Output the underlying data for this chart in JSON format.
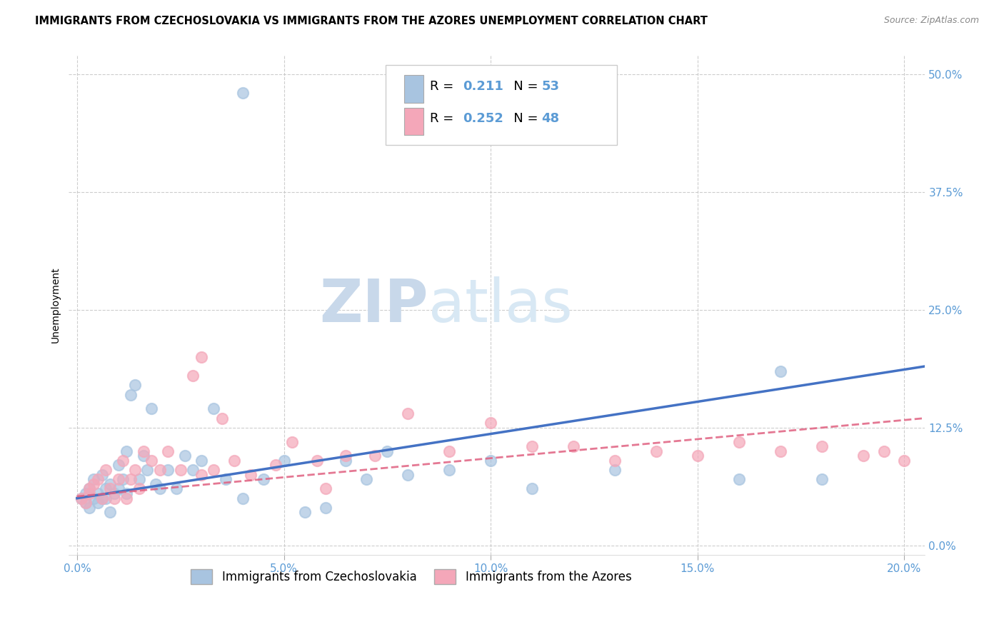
{
  "title": "IMMIGRANTS FROM CZECHOSLOVAKIA VS IMMIGRANTS FROM THE AZORES UNEMPLOYMENT CORRELATION CHART",
  "source": "Source: ZipAtlas.com",
  "ylabel": "Unemployment",
  "x_tick_labels": [
    "0.0%",
    "5.0%",
    "10.0%",
    "15.0%",
    "20.0%"
  ],
  "x_tick_values": [
    0.0,
    0.05,
    0.1,
    0.15,
    0.2
  ],
  "y_tick_labels": [
    "0.0%",
    "12.5%",
    "25.0%",
    "37.5%",
    "50.0%"
  ],
  "y_tick_values": [
    0.0,
    0.125,
    0.25,
    0.375,
    0.5
  ],
  "xlim": [
    -0.002,
    0.205
  ],
  "ylim": [
    -0.01,
    0.52
  ],
  "legend_label1": "Immigrants from Czechoslovakia",
  "legend_label2": "Immigrants from the Azores",
  "r1": "0.211",
  "n1": "53",
  "r2": "0.252",
  "n2": "48",
  "color1": "#a8c4e0",
  "color2": "#f4a7b9",
  "line_color1": "#4472c4",
  "line_color2": "#e06080",
  "tick_color": "#5b9bd5",
  "watermark_zip": "ZIP",
  "watermark_atlas": "atlas",
  "watermark_color": "#dce6f1",
  "scatter1_x": [
    0.001,
    0.002,
    0.002,
    0.003,
    0.003,
    0.004,
    0.004,
    0.005,
    0.005,
    0.006,
    0.006,
    0.007,
    0.007,
    0.008,
    0.008,
    0.009,
    0.01,
    0.01,
    0.011,
    0.012,
    0.012,
    0.013,
    0.014,
    0.015,
    0.016,
    0.017,
    0.018,
    0.019,
    0.02,
    0.022,
    0.024,
    0.026,
    0.028,
    0.03,
    0.033,
    0.036,
    0.04,
    0.045,
    0.05,
    0.055,
    0.06,
    0.065,
    0.07,
    0.075,
    0.08,
    0.09,
    0.1,
    0.11,
    0.13,
    0.16,
    0.17,
    0.18,
    0.04
  ],
  "scatter1_y": [
    0.05,
    0.045,
    0.055,
    0.06,
    0.04,
    0.07,
    0.05,
    0.055,
    0.045,
    0.075,
    0.05,
    0.06,
    0.05,
    0.035,
    0.065,
    0.055,
    0.085,
    0.06,
    0.07,
    0.055,
    0.1,
    0.16,
    0.17,
    0.07,
    0.095,
    0.08,
    0.145,
    0.065,
    0.06,
    0.08,
    0.06,
    0.095,
    0.08,
    0.09,
    0.145,
    0.07,
    0.05,
    0.07,
    0.09,
    0.035,
    0.04,
    0.09,
    0.07,
    0.1,
    0.075,
    0.08,
    0.09,
    0.06,
    0.08,
    0.07,
    0.185,
    0.07,
    0.48
  ],
  "scatter2_x": [
    0.001,
    0.002,
    0.003,
    0.003,
    0.004,
    0.005,
    0.006,
    0.007,
    0.008,
    0.009,
    0.01,
    0.011,
    0.012,
    0.013,
    0.014,
    0.015,
    0.016,
    0.018,
    0.02,
    0.022,
    0.025,
    0.028,
    0.03,
    0.033,
    0.038,
    0.042,
    0.048,
    0.052,
    0.058,
    0.065,
    0.072,
    0.08,
    0.09,
    0.1,
    0.11,
    0.12,
    0.13,
    0.14,
    0.15,
    0.16,
    0.17,
    0.18,
    0.19,
    0.195,
    0.2,
    0.03,
    0.035,
    0.06
  ],
  "scatter2_y": [
    0.05,
    0.045,
    0.06,
    0.055,
    0.065,
    0.07,
    0.05,
    0.08,
    0.06,
    0.05,
    0.07,
    0.09,
    0.05,
    0.07,
    0.08,
    0.06,
    0.1,
    0.09,
    0.08,
    0.1,
    0.08,
    0.18,
    0.075,
    0.08,
    0.09,
    0.075,
    0.085,
    0.11,
    0.09,
    0.095,
    0.095,
    0.14,
    0.1,
    0.13,
    0.105,
    0.105,
    0.09,
    0.1,
    0.095,
    0.11,
    0.1,
    0.105,
    0.095,
    0.1,
    0.09,
    0.2,
    0.135,
    0.06
  ],
  "trendline1_x": [
    0.0,
    0.205
  ],
  "trendline1_y": [
    0.05,
    0.19
  ],
  "trendline2_x": [
    0.0,
    0.205
  ],
  "trendline2_y": [
    0.052,
    0.135
  ],
  "background_color": "#ffffff",
  "grid_color": "#c8c8c8",
  "title_fontsize": 10.5,
  "axis_fontsize": 10,
  "tick_fontsize": 11,
  "legend_fontsize": 13,
  "watermark_fontsize_zip": 60,
  "watermark_fontsize_atlas": 60
}
